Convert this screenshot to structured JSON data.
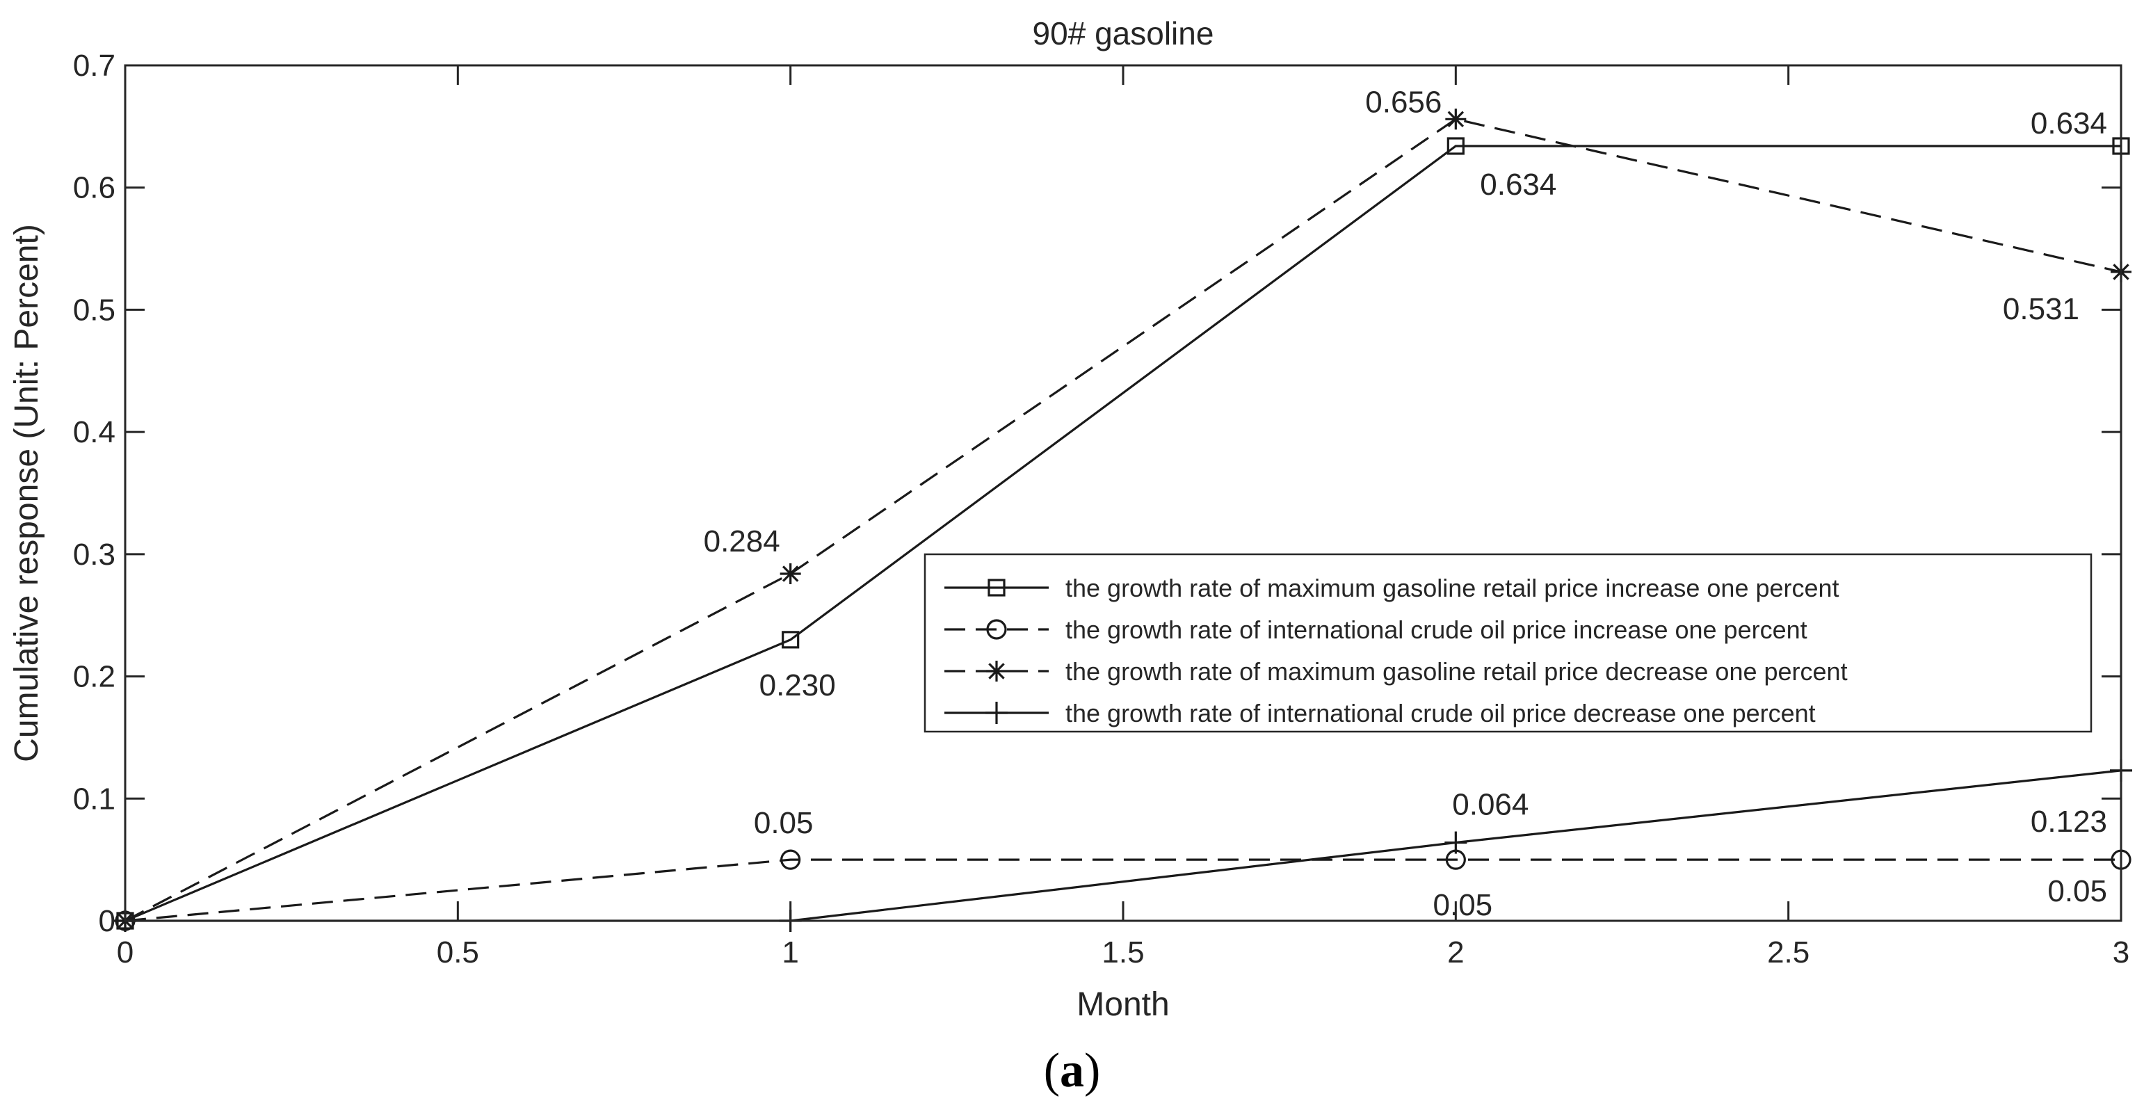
{
  "chart_data": {
    "type": "line",
    "title": "90# gasoline",
    "xlabel": "Month",
    "ylabel": "Cumulative response (Unit: Percent)",
    "xlim": [
      0,
      3
    ],
    "ylim": [
      0,
      0.7
    ],
    "x_ticks": [
      "0",
      "0.5",
      "1",
      "1.5",
      "2",
      "2.5",
      "3"
    ],
    "y_ticks": [
      "0",
      "0.1",
      "0.2",
      "0.3",
      "0.4",
      "0.5",
      "0.6",
      "0.7"
    ],
    "x": [
      0,
      1,
      2,
      3
    ],
    "series": [
      {
        "name": "the growth rate of maximum gasoline retail price increase one percent",
        "values": [
          0,
          0.23,
          0.634,
          0.634
        ],
        "line": "solid",
        "marker": "square"
      },
      {
        "name": "the growth rate of international crude oil price increase one percent",
        "values": [
          0,
          0.05,
          0.05,
          0.05
        ],
        "line": "dashed",
        "marker": "circle"
      },
      {
        "name": "the growth rate of maximum gasoline retail price decrease one percent",
        "values": [
          0,
          0.284,
          0.656,
          0.531
        ],
        "line": "dashed",
        "marker": "star"
      },
      {
        "name": "the growth rate of international crude oil price decrease one percent",
        "values": [
          0,
          0,
          0.064,
          0.123
        ],
        "line": "solid",
        "marker": "plus"
      }
    ],
    "annotations": [
      {
        "text": "0.284",
        "x": 1,
        "y": 0.284
      },
      {
        "text": "0.230",
        "x": 1,
        "y": 0.23
      },
      {
        "text": "0.05",
        "x": 1,
        "y": 0.05
      },
      {
        "text": "0.656",
        "x": 2,
        "y": 0.656
      },
      {
        "text": "0.634",
        "x": 2,
        "y": 0.634
      },
      {
        "text": "0.064",
        "x": 2,
        "y": 0.064
      },
      {
        "text": "0.05",
        "x": 2,
        "y": 0.05
      },
      {
        "text": "0.634",
        "x": 3,
        "y": 0.634
      },
      {
        "text": "0.531",
        "x": 3,
        "y": 0.531
      },
      {
        "text": "0.123",
        "x": 3,
        "y": 0.123
      },
      {
        "text": "0.05",
        "x": 3,
        "y": 0.05
      }
    ],
    "legend_position": "center-right",
    "grid": false
  },
  "panel_label": "a"
}
